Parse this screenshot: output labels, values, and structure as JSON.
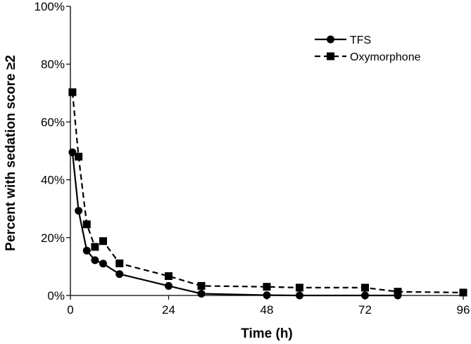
{
  "chart_data": {
    "type": "line",
    "xlabel": "Time (h)",
    "ylabel": "Percent with sedation score ≥2",
    "xlim": [
      0,
      96
    ],
    "ylim": [
      0,
      100
    ],
    "x_ticks": [
      0,
      24,
      48,
      72,
      96
    ],
    "y_ticks": [
      0,
      20,
      40,
      60,
      80,
      100
    ],
    "y_tick_suffix": "%",
    "grid": false,
    "legend_position": "top-right",
    "series": [
      {
        "name": "TFS",
        "marker": "circle",
        "line_style": "solid",
        "color": "#000000",
        "x": [
          0.5,
          2,
          4,
          6,
          8,
          12,
          24,
          32,
          48,
          56,
          72,
          80
        ],
        "y": [
          49.5,
          29.3,
          15.5,
          12.2,
          11,
          7.4,
          3.3,
          0.6,
          0.1,
          0,
          0,
          0
        ]
      },
      {
        "name": "Oxymorphone",
        "marker": "square",
        "line_style": "dashed",
        "color": "#000000",
        "x": [
          0.5,
          2,
          4,
          6,
          8,
          12,
          24,
          32,
          48,
          56,
          72,
          80,
          96
        ],
        "y": [
          70.3,
          48,
          24.6,
          16.8,
          18.8,
          11.1,
          6.7,
          3.3,
          3,
          2.7,
          2.7,
          1.3,
          1
        ]
      }
    ]
  }
}
